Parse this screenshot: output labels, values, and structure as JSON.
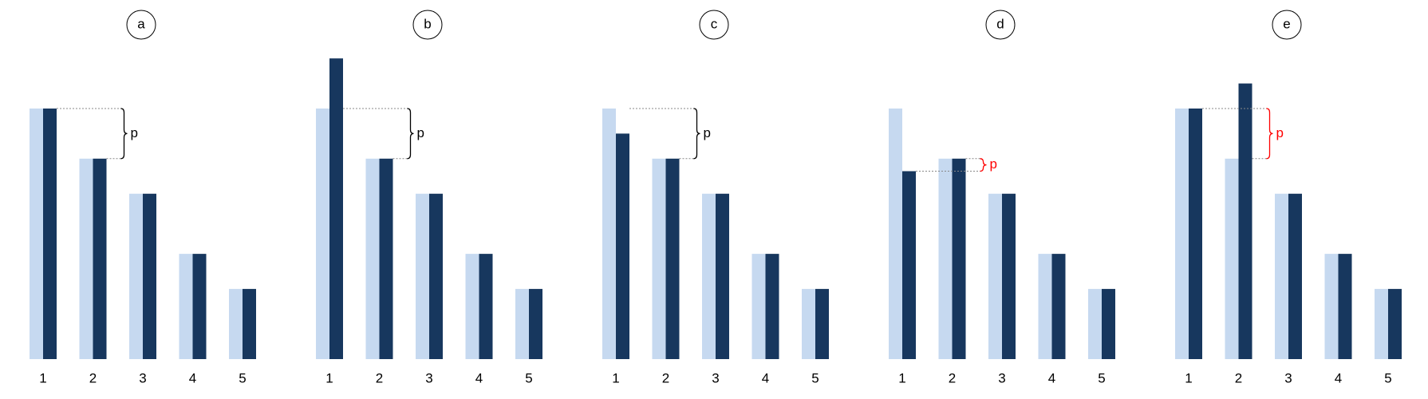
{
  "chart_data": [
    {
      "type": "bar",
      "title": "a",
      "categories": [
        "1",
        "2",
        "3",
        "4",
        "5"
      ],
      "series": [
        {
          "color": "#c6d9f0",
          "values": [
            100,
            80,
            66,
            42,
            28
          ]
        },
        {
          "color": "#17375e",
          "values": [
            100,
            80,
            66,
            42,
            28
          ]
        }
      ],
      "annotation": "p",
      "annotation_color": "#000000"
    },
    {
      "type": "bar",
      "title": "b",
      "categories": [
        "1",
        "2",
        "3",
        "4",
        "5"
      ],
      "series": [
        {
          "color": "#c6d9f0",
          "values": [
            100,
            80,
            66,
            42,
            28
          ]
        },
        {
          "color": "#17375e",
          "values": [
            120,
            80,
            66,
            42,
            28
          ]
        }
      ],
      "annotation": "p",
      "annotation_color": "#000000"
    },
    {
      "type": "bar",
      "title": "c",
      "categories": [
        "1",
        "2",
        "3",
        "4",
        "5"
      ],
      "series": [
        {
          "color": "#c6d9f0",
          "values": [
            100,
            80,
            66,
            42,
            28
          ]
        },
        {
          "color": "#17375e",
          "values": [
            90,
            80,
            66,
            42,
            28
          ]
        }
      ],
      "annotation": "p",
      "annotation_color": "#000000"
    },
    {
      "type": "bar",
      "title": "d",
      "categories": [
        "1",
        "2",
        "3",
        "4",
        "5"
      ],
      "series": [
        {
          "color": "#c6d9f0",
          "values": [
            100,
            80,
            66,
            42,
            28
          ]
        },
        {
          "color": "#17375e",
          "values": [
            75,
            80,
            66,
            42,
            28
          ]
        }
      ],
      "annotation": "p",
      "annotation_color": "#ff0000"
    },
    {
      "type": "bar",
      "title": "e",
      "categories": [
        "1",
        "2",
        "3",
        "4",
        "5"
      ],
      "series": [
        {
          "color": "#c6d9f0",
          "values": [
            100,
            80,
            66,
            42,
            28
          ]
        },
        {
          "color": "#17375e",
          "values": [
            100,
            110,
            66,
            42,
            28
          ]
        }
      ],
      "annotation": "p",
      "annotation_color": "#ff0000"
    }
  ]
}
